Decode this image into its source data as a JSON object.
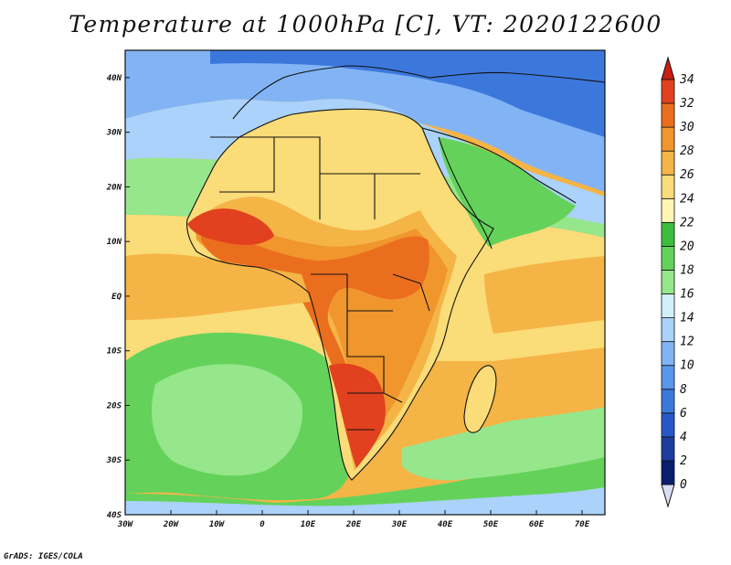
{
  "title": "Temperature at 1000hPa [C], VT: 2020122600",
  "footer": "GrADS: IGES/COLA",
  "map": {
    "lon_range": [
      -30,
      75
    ],
    "lat_range": [
      -40,
      45
    ],
    "x_ticks": [
      {
        "value": -30,
        "label": "30W"
      },
      {
        "value": -20,
        "label": "20W"
      },
      {
        "value": -10,
        "label": "10W"
      },
      {
        "value": 0,
        "label": "0"
      },
      {
        "value": 10,
        "label": "10E"
      },
      {
        "value": 20,
        "label": "20E"
      },
      {
        "value": 30,
        "label": "30E"
      },
      {
        "value": 40,
        "label": "40E"
      },
      {
        "value": 50,
        "label": "50E"
      },
      {
        "value": 60,
        "label": "60E"
      },
      {
        "value": 70,
        "label": "70E"
      }
    ],
    "y_ticks": [
      {
        "value": 40,
        "label": "40N"
      },
      {
        "value": 30,
        "label": "30N"
      },
      {
        "value": 20,
        "label": "20N"
      },
      {
        "value": 10,
        "label": "10N"
      },
      {
        "value": 0,
        "label": "EQ"
      },
      {
        "value": -10,
        "label": "10S"
      },
      {
        "value": -20,
        "label": "20S"
      },
      {
        "value": -30,
        "label": "30S"
      },
      {
        "value": -40,
        "label": "40S"
      }
    ]
  },
  "colorbar": {
    "levels": [
      0,
      2,
      4,
      6,
      8,
      10,
      12,
      14,
      16,
      18,
      20,
      22,
      24,
      26,
      28,
      30,
      32,
      34
    ],
    "colors": [
      "#0a1e6e",
      "#1e3ca0",
      "#2858c8",
      "#3c78dc",
      "#5a96eb",
      "#82b4f5",
      "#aad2fa",
      "#d2f0fa",
      "#96e68c",
      "#64d25a",
      "#3cbe3c",
      "#fff5b4",
      "#fadc78",
      "#f5b446",
      "#f0962d",
      "#eb6e1e",
      "#e1411e"
    ],
    "low_color": "#dcdcf5",
    "high_color": "#c81e14"
  }
}
